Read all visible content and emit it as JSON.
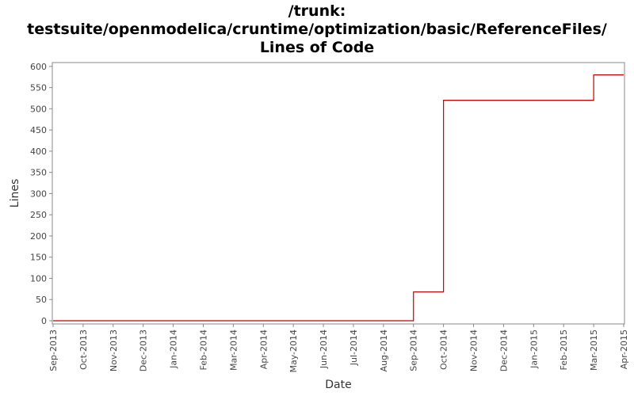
{
  "chart_data": {
    "type": "step",
    "title": [
      "/trunk:",
      "testsuite/openmodelica/cruntime/optimization/basic/ReferenceFiles/",
      "Lines of Code"
    ],
    "x_label": "Date",
    "y_label": "Lines",
    "x": [
      "2013-09",
      "2014-09",
      "2014-09",
      "2014-09",
      "2014-10",
      "2015-03",
      "2015-04"
    ],
    "series": [
      {
        "name": "Lines",
        "color": "#c00000",
        "values": [
          0,
          60,
          65,
          68,
          520,
          580,
          580
        ]
      }
    ],
    "xlim": [
      "2013-09",
      "2015-04"
    ],
    "xticks": [
      {
        "value": "2013-09",
        "label": "Sep-2013"
      },
      {
        "value": "2013-10",
        "label": "Oct-2013"
      },
      {
        "value": "2013-11",
        "label": "Nov-2013"
      },
      {
        "value": "2013-12",
        "label": "Dec-2013"
      },
      {
        "value": "2014-01",
        "label": "Jan-2014"
      },
      {
        "value": "2014-02",
        "label": "Feb-2014"
      },
      {
        "value": "2014-03",
        "label": "Mar-2014"
      },
      {
        "value": "2014-04",
        "label": "Apr-2014"
      },
      {
        "value": "2014-05",
        "label": "May-2014"
      },
      {
        "value": "2014-06",
        "label": "Jun-2014"
      },
      {
        "value": "2014-07",
        "label": "Jul-2014"
      },
      {
        "value": "2014-08",
        "label": "Aug-2014"
      },
      {
        "value": "2014-09",
        "label": "Sep-2014"
      },
      {
        "value": "2014-10",
        "label": "Oct-2014"
      },
      {
        "value": "2014-11",
        "label": "Nov-2014"
      },
      {
        "value": "2014-12",
        "label": "Dec-2014"
      },
      {
        "value": "2015-01",
        "label": "Jan-2015"
      },
      {
        "value": "2015-02",
        "label": "Feb-2015"
      },
      {
        "value": "2015-03",
        "label": "Mar-2015"
      },
      {
        "value": "2015-04",
        "label": "Apr-2015"
      }
    ],
    "ylim": [
      -7.5,
      609
    ],
    "yticks": [
      0,
      50,
      100,
      150,
      200,
      250,
      300,
      350,
      400,
      450,
      500,
      550,
      600
    ]
  }
}
